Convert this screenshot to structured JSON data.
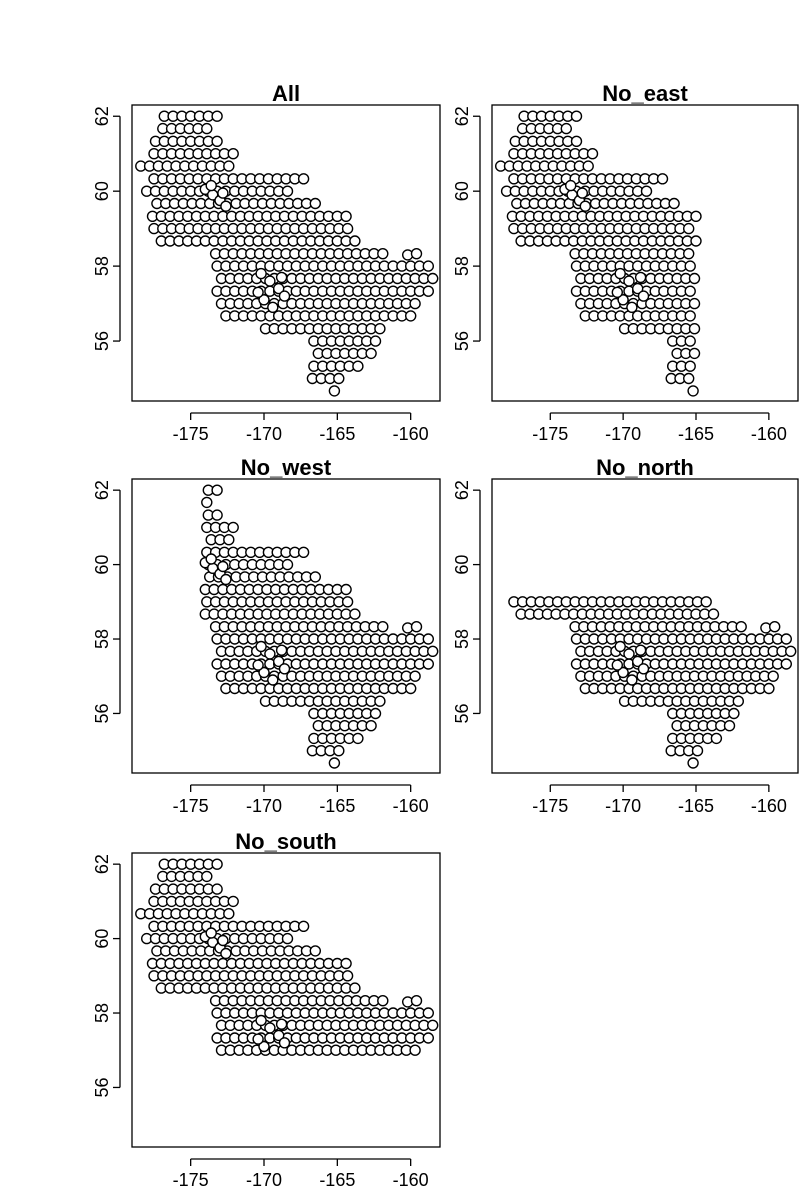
{
  "chart_data": [
    {
      "type": "scatter",
      "title": "All",
      "xlabel": "",
      "ylabel": "",
      "xlim": [
        -179,
        -158
      ],
      "ylim": [
        54.4,
        62.3
      ],
      "x_ticks": [
        "-175",
        "-170",
        "-165",
        "-160"
      ],
      "y_ticks": [
        "56",
        "58",
        "60",
        "62"
      ],
      "subset": "full grid of stations",
      "marker": "open-circle"
    },
    {
      "type": "scatter",
      "title": "No_east",
      "xlabel": "",
      "ylabel": "",
      "xlim": [
        -179,
        -158
      ],
      "ylim": [
        54.4,
        62.3
      ],
      "x_ticks": [
        "-175",
        "-170",
        "-165",
        "-160"
      ],
      "y_ticks": [
        "56",
        "58",
        "60",
        "62"
      ],
      "subset": "stations with longitude <= -165",
      "marker": "open-circle"
    },
    {
      "type": "scatter",
      "title": "No_west",
      "xlabel": "",
      "ylabel": "",
      "xlim": [
        -179,
        -158
      ],
      "ylim": [
        54.4,
        62.3
      ],
      "x_ticks": [
        "-175",
        "-170",
        "-165",
        "-160"
      ],
      "y_ticks": [
        "56",
        "58",
        "60",
        "62"
      ],
      "subset": "stations with longitude >= -174",
      "marker": "open-circle"
    },
    {
      "type": "scatter",
      "title": "No_north",
      "xlabel": "",
      "ylabel": "",
      "xlim": [
        -179,
        -158
      ],
      "ylim": [
        54.4,
        62.3
      ],
      "x_ticks": [
        "-175",
        "-170",
        "-165",
        "-160"
      ],
      "y_ticks": [
        "56",
        "58",
        "60",
        "62"
      ],
      "subset": "stations with latitude <= 59",
      "marker": "open-circle"
    },
    {
      "type": "scatter",
      "title": "No_south",
      "xlabel": "",
      "ylabel": "",
      "xlim": [
        -179,
        -158
      ],
      "ylim": [
        54.4,
        62.3
      ],
      "x_ticks": [
        "-175",
        "-170",
        "-165",
        "-160"
      ],
      "y_ticks": [
        "56",
        "58",
        "60",
        "62"
      ],
      "subset": "stations with latitude >= 57",
      "marker": "open-circle"
    }
  ],
  "grid_points": {
    "lat_step": 0.333,
    "rows": [
      {
        "lat": 62.0,
        "lon_from": -176.8,
        "lon_to": -173.0
      },
      {
        "lat": 61.67,
        "lon_from": -177.2,
        "lon_to": -173.4
      },
      {
        "lat": 61.33,
        "lon_from": -177.4,
        "lon_to": -173.0
      },
      {
        "lat": 61.0,
        "lon_from": -177.8,
        "lon_to": -171.8
      },
      {
        "lat": 60.67,
        "lon_from": -178.4,
        "lon_to": -172.0
      },
      {
        "lat": 60.33,
        "lon_from": -177.8,
        "lon_to": -167.0
      },
      {
        "lat": 60.0,
        "lon_from": -178.0,
        "lon_to": -168.2
      },
      {
        "lat": 59.67,
        "lon_from": -177.6,
        "lon_to": -166.0
      },
      {
        "lat": 59.33,
        "lon_from": -177.6,
        "lon_to": -164.0
      },
      {
        "lat": 59.0,
        "lon_from": -177.8,
        "lon_to": -164.0
      },
      {
        "lat": 58.67,
        "lon_from": -177.0,
        "lon_to": -163.4
      },
      {
        "lat": 58.33,
        "lon_from": -173.6,
        "lon_to": -161.6
      },
      {
        "lat": 58.0,
        "lon_from": -173.2,
        "lon_to": -158.4
      },
      {
        "lat": 57.67,
        "lon_from": -173.2,
        "lon_to": -158.4
      },
      {
        "lat": 57.33,
        "lon_from": -173.2,
        "lon_to": -158.4
      },
      {
        "lat": 57.0,
        "lon_from": -173.2,
        "lon_to": -159.6
      },
      {
        "lat": 56.67,
        "lon_from": -172.6,
        "lon_to": -159.8
      },
      {
        "lat": 56.33,
        "lon_from": -170.2,
        "lon_to": -161.6
      },
      {
        "lat": 56.0,
        "lon_from": -166.6,
        "lon_to": -162.0
      },
      {
        "lat": 55.67,
        "lon_from": -166.6,
        "lon_to": -162.6
      },
      {
        "lat": 55.33,
        "lon_from": -166.6,
        "lon_to": -163.6
      },
      {
        "lat": 55.0,
        "lon_from": -167.0,
        "lon_to": -164.4
      },
      {
        "lat": 54.67,
        "lon_from": -165.2,
        "lon_to": -165.0
      }
    ],
    "extra_points": [
      {
        "lon": -160.2,
        "lat": 58.3
      },
      {
        "lon": -159.6,
        "lat": 58.33
      },
      {
        "lon": -174.0,
        "lat": 60.05
      },
      {
        "lon": -173.5,
        "lat": 59.9
      },
      {
        "lon": -173.0,
        "lat": 59.75
      },
      {
        "lon": -172.6,
        "lat": 59.6
      },
      {
        "lon": -173.6,
        "lat": 60.15
      },
      {
        "lon": -172.8,
        "lat": 59.95
      },
      {
        "lon": -170.2,
        "lat": 57.8
      },
      {
        "lon": -169.6,
        "lat": 57.6
      },
      {
        "lon": -169.0,
        "lat": 57.4
      },
      {
        "lon": -168.6,
        "lat": 57.2
      },
      {
        "lon": -170.0,
        "lat": 57.1
      },
      {
        "lon": -169.4,
        "lat": 56.9
      },
      {
        "lon": -170.4,
        "lat": 57.3
      },
      {
        "lon": -168.8,
        "lat": 57.7
      }
    ]
  }
}
